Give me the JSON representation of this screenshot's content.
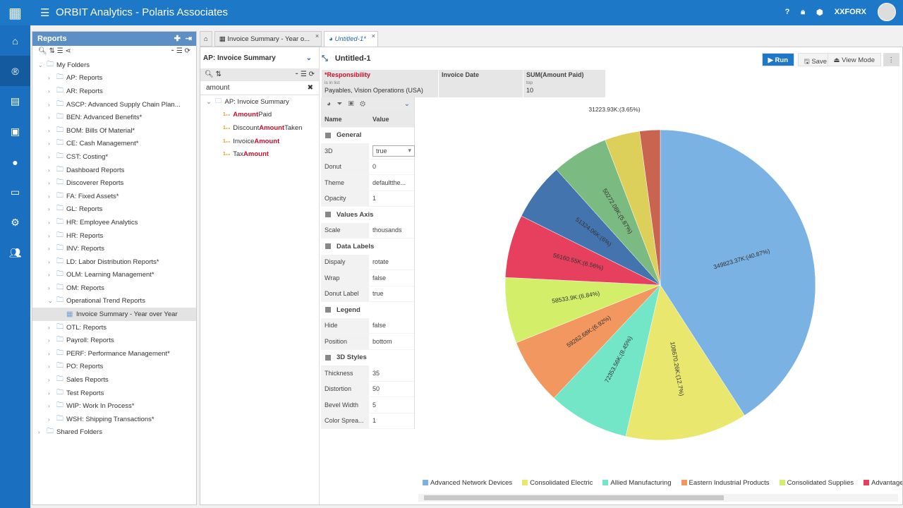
{
  "app": {
    "title": "ORBIT Analytics - Polaris Associates",
    "user": "XXFORX",
    "help": "?"
  },
  "rail": [
    "home-icon",
    "reports-icon",
    "document-icon",
    "dashboard-icon",
    "user-icon",
    "monitor-icon",
    "settings-icon",
    "group-icon"
  ],
  "reports": {
    "title": "Reports",
    "tree": [
      {
        "label": "My Folders",
        "level": 0,
        "open": true
      },
      {
        "label": "AP: Reports",
        "level": 1
      },
      {
        "label": "AR: Reports",
        "level": 1
      },
      {
        "label": "ASCP: Advanced Supply Chain Plan...",
        "level": 1
      },
      {
        "label": "BEN: Advanced Benefits*",
        "level": 1
      },
      {
        "label": "BOM: Bills Of Material*",
        "level": 1
      },
      {
        "label": "CE: Cash Management*",
        "level": 1
      },
      {
        "label": "CST: Costing*",
        "level": 1
      },
      {
        "label": "Dashboard Reports",
        "level": 1
      },
      {
        "label": "Discoverer Reports",
        "level": 1
      },
      {
        "label": "FA: Fixed Assets*",
        "level": 1
      },
      {
        "label": "GL: Reports",
        "level": 1
      },
      {
        "label": "HR: Employee Analytics",
        "level": 1
      },
      {
        "label": "HR: Reports",
        "level": 1
      },
      {
        "label": "INV: Reports",
        "level": 1
      },
      {
        "label": "LD: Labor Distribution Reports*",
        "level": 1
      },
      {
        "label": "OLM: Learning Management*",
        "level": 1
      },
      {
        "label": "OM: Reports",
        "level": 1
      },
      {
        "label": "Operational Trend Reports",
        "level": 1,
        "open": true
      },
      {
        "label": "Invoice Summary - Year over Year",
        "level": 2,
        "report": true
      },
      {
        "label": "OTL: Reports",
        "level": 1
      },
      {
        "label": "Payroll: Reports",
        "level": 1
      },
      {
        "label": "PERF: Performance Management*",
        "level": 1
      },
      {
        "label": "PO: Reports",
        "level": 1
      },
      {
        "label": "Sales Reports",
        "level": 1
      },
      {
        "label": "Test Reports",
        "level": 1
      },
      {
        "label": "WIP: Work In Process*",
        "level": 1
      },
      {
        "label": "WSH: Shipping Transactions*",
        "level": 1
      },
      {
        "label": "Shared Folders",
        "level": 0
      }
    ]
  },
  "tabs": [
    {
      "label": "Invoice Summary - Year o..."
    },
    {
      "label": "Untitled-1*"
    }
  ],
  "fields": {
    "source": "AP: Invoice Summary",
    "search": "amount",
    "root": "AP: Invoice Summary",
    "items": [
      {
        "pre": "",
        "hl": "Amount",
        "post": " Paid"
      },
      {
        "pre": "Discount ",
        "hl": "Amount",
        "post": " Taken"
      },
      {
        "pre": "Invoice ",
        "hl": "Amount",
        "post": ""
      },
      {
        "pre": "Tax ",
        "hl": "Amount",
        "post": ""
      }
    ]
  },
  "editor": {
    "title": "Untitled-1",
    "run": "Run",
    "save": "Save",
    "view_mode": "View Mode"
  },
  "filters": [
    {
      "name": "*Responsibility",
      "op": "is in list",
      "value": "Payables, Vision Operations (USA)"
    },
    {
      "name": "Invoice Date",
      "op": "",
      "value": ""
    },
    {
      "name": "SUM(Amount Paid)",
      "op": "top",
      "value": "10"
    }
  ],
  "props": {
    "col_name": "Name",
    "col_value": "Value",
    "rows": [
      {
        "section": "General"
      },
      {
        "k": "3D",
        "v": "true",
        "select": true
      },
      {
        "k": "Donut",
        "v": "0"
      },
      {
        "k": "Theme",
        "v": "defaultthe..."
      },
      {
        "k": "Opacity",
        "v": "1"
      },
      {
        "section": "Values Axis"
      },
      {
        "k": "Scale",
        "v": "thousands"
      },
      {
        "section": "Data Labels"
      },
      {
        "k": "Dispaly",
        "v": "rotate"
      },
      {
        "k": "Wrap",
        "v": "false"
      },
      {
        "k": "Donut Label",
        "v": "true"
      },
      {
        "section": "Legend"
      },
      {
        "k": "Hide",
        "v": "false"
      },
      {
        "k": "Position",
        "v": "bottom"
      },
      {
        "section": "3D Styles"
      },
      {
        "k": "Thickness",
        "v": "35"
      },
      {
        "k": "Distortion",
        "v": "50"
      },
      {
        "k": "Bevel Width",
        "v": "5"
      },
      {
        "k": "Color Sprea...",
        "v": "1"
      }
    ]
  },
  "chart_data": {
    "type": "pie",
    "start": "top",
    "direction": "clockwise",
    "legend_position": "bottom",
    "slices": [
      {
        "name": "Advanced Network Devices",
        "value": 349823.37,
        "pct": 40.87,
        "label": "349823.37K:(40.87%)",
        "color": "#7ab2e3"
      },
      {
        "name": "Consolidated Electric",
        "value": 108670.26,
        "pct": 12.7,
        "label": "108670.26K:(12.7%)",
        "color": "#e9e76e"
      },
      {
        "name": "Allied Manufacturing",
        "value": 72353.56,
        "pct": 8.45,
        "label": "72353.56K:(8.45%)",
        "color": "#72e6c6"
      },
      {
        "name": "Eastern Industrial Products",
        "value": 59262.68,
        "pct": 6.92,
        "label": "59262.68K:(6.92%)",
        "color": "#f1975f"
      },
      {
        "name": "Consolidated Supplies",
        "value": 58533.9,
        "pct": 6.84,
        "label": "58533.9K:(6.84%)",
        "color": "#d3ef69"
      },
      {
        "name": "Advantage",
        "value": 56160.55,
        "pct": 6.56,
        "label": "56160.55K:(6.56%)",
        "color": "#e6405e"
      },
      {
        "name": "",
        "value": 51324.06,
        "pct": 6.0,
        "label": "51324.06K:(6%)",
        "color": "#4474ad"
      },
      {
        "name": "",
        "value": 50272.08,
        "pct": 5.87,
        "label": "50272.08K:(5.87%)",
        "color": "#7bba80"
      },
      {
        "name": "",
        "value": 31223.93,
        "pct": 3.65,
        "label": "31223.93K:(3.65%)",
        "color": "#dccf5a"
      },
      {
        "name": "",
        "value": 18300,
        "pct": 2.14,
        "label": "",
        "color": "#c86450"
      }
    ]
  }
}
